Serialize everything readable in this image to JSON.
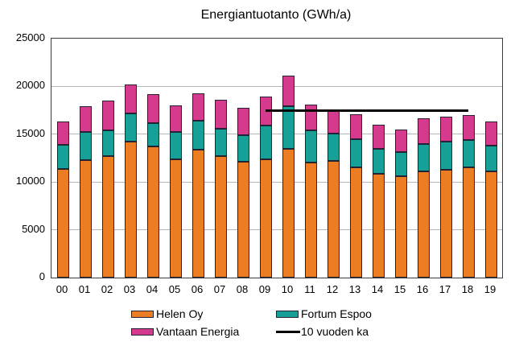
{
  "title": "Energiantuotanto (GWh/a)",
  "chart_data": {
    "type": "bar",
    "stacked": true,
    "title": "Energiantuotanto (GWh/a)",
    "xlabel": "",
    "ylabel": "",
    "categories": [
      "00",
      "01",
      "02",
      "03",
      "04",
      "05",
      "06",
      "07",
      "08",
      "09",
      "10",
      "11",
      "12",
      "13",
      "14",
      "15",
      "16",
      "17",
      "18",
      "19"
    ],
    "series": [
      {
        "name": "Helen Oy",
        "color": "#ED7D23",
        "values": [
          11400,
          12300,
          12700,
          14200,
          13700,
          12400,
          13400,
          12700,
          12100,
          12400,
          13500,
          12000,
          12200,
          11500,
          10900,
          10600,
          11100,
          11300,
          11500,
          11100
        ]
      },
      {
        "name": "Fortum Espoo",
        "color": "#16A098",
        "values": [
          2500,
          2900,
          2700,
          3000,
          2500,
          2800,
          3000,
          2900,
          2800,
          3550,
          4400,
          3400,
          2900,
          3000,
          2600,
          2550,
          2900,
          2900,
          2900,
          2700
        ]
      },
      {
        "name": "Vantaan Energia",
        "color": "#D53A8D",
        "values": [
          2400,
          2700,
          3100,
          3000,
          3000,
          2800,
          2900,
          3000,
          2900,
          2950,
          3200,
          2700,
          2500,
          2600,
          2500,
          2350,
          2700,
          2600,
          2600,
          2550
        ]
      }
    ],
    "totals": [
      16300,
      17900,
      18500,
      20200,
      19200,
      18000,
      19300,
      18600,
      17800,
      18900,
      21100,
      18100,
      17600,
      17100,
      16000,
      15500,
      16700,
      16800,
      17000,
      16350
    ],
    "average_line": {
      "name": "10 vuoden ka",
      "value": 17500,
      "from_category": "09",
      "to_category": "18",
      "color": "#000000"
    },
    "ylim": [
      0,
      25000
    ],
    "yticks": [
      0,
      5000,
      10000,
      15000,
      20000,
      25000
    ],
    "grid": true,
    "gridline_color": "#b5b5b5",
    "legend_position": "bottom"
  }
}
